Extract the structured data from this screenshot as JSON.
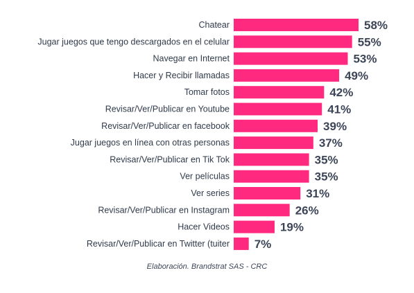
{
  "chart_data": {
    "type": "bar",
    "orientation": "horizontal",
    "categories": [
      "Chatear",
      "Jugar juegos que tengo descargados en el celular",
      "Navegar en Internet",
      "Hacer y Recibir llamadas",
      "Tomar fotos",
      "Revisar/Ver/Publicar en Youtube",
      "Revisar/Ver/Publicar en facebook",
      "Jugar juegos en línea con otras personas",
      "Revisar/Ver/Publicar en Tik Tok",
      "Ver películas",
      "Ver series",
      "Revisar/Ver/Publicar en Instagram",
      "Hacer Videos",
      "Revisar/Ver/Publicar en Twitter (tuiter"
    ],
    "values": [
      58,
      55,
      53,
      49,
      42,
      41,
      39,
      37,
      35,
      35,
      31,
      26,
      19,
      7
    ],
    "value_labels": [
      "58%",
      "55%",
      "53%",
      "49%",
      "42%",
      "41%",
      "39%",
      "37%",
      "35%",
      "35%",
      "31%",
      "26%",
      "19%",
      "7%"
    ],
    "unit": "%",
    "title": "",
    "xlabel": "",
    "ylabel": "",
    "xlim": [
      0,
      58
    ],
    "grid": false,
    "legend": "none",
    "bar_color": "#ff2a7f"
  },
  "caption": "Elaboración. Brandstrat SAS - CRC"
}
